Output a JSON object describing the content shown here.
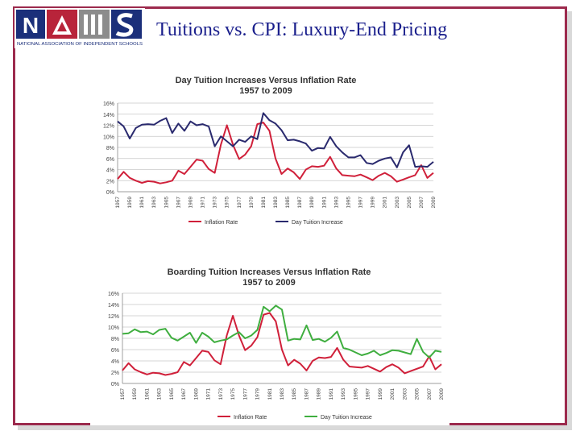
{
  "slide_title": "Tuitions vs. CPI: Luxury-End Pricing",
  "logo": {
    "letters": [
      "N",
      "A",
      "I",
      "S"
    ],
    "caption": "NATIONAL ASSOCIATION OF INDEPENDENT SCHOOLS",
    "colors": {
      "blue": "#1b2f7a",
      "red": "#b8243a",
      "gray": "#8c8c8c"
    }
  },
  "colors": {
    "frame": "#9c2a4d",
    "inflation": "#d0203a",
    "day": "#2a2a6e",
    "boarding": "#3fae3f"
  },
  "chart_data": [
    {
      "type": "line",
      "title": "Day Tuition Increases Versus Inflation Rate",
      "subtitle": "1957 to 2009",
      "ylim": [
        0,
        16
      ],
      "yticks": [
        "16%",
        "14%",
        "12%",
        "10%",
        "8%",
        "6%",
        "4%",
        "2%",
        "0%"
      ],
      "grid": true,
      "legend_position": "bottom",
      "x": [
        1957,
        1958,
        1959,
        1960,
        1961,
        1962,
        1963,
        1964,
        1965,
        1966,
        1967,
        1968,
        1969,
        1970,
        1971,
        1972,
        1973,
        1974,
        1975,
        1976,
        1977,
        1978,
        1979,
        1980,
        1981,
        1982,
        1983,
        1984,
        1985,
        1986,
        1987,
        1988,
        1989,
        1990,
        1991,
        1992,
        1993,
        1994,
        1995,
        1996,
        1997,
        1998,
        1999,
        2000,
        2001,
        2002,
        2003,
        2004,
        2005,
        2006,
        2007,
        2008,
        2009
      ],
      "xtick_labels": [
        "1957",
        "1959",
        "1961",
        "1963",
        "1965",
        "1967",
        "1969",
        "1971",
        "1973",
        "1975",
        "1977",
        "1979",
        "1981",
        "1983",
        "1985",
        "1987",
        "1989",
        "1991",
        "1993",
        "1995",
        "1997",
        "1999",
        "2001",
        "2003",
        "2005",
        "2007",
        "2009"
      ],
      "series": [
        {
          "name": "Inflation Rate",
          "color": "#d0203a",
          "values": [
            2.3,
            3.6,
            2.5,
            2.0,
            1.6,
            1.9,
            1.8,
            1.5,
            1.7,
            2.0,
            3.8,
            3.2,
            4.5,
            5.8,
            5.6,
            4.1,
            3.4,
            8.5,
            12.0,
            8.5,
            5.9,
            6.7,
            8.2,
            12.2,
            12.5,
            11.0,
            6.0,
            3.2,
            4.2,
            3.5,
            2.3,
            4.0,
            4.6,
            4.5,
            4.7,
            6.3,
            4.2,
            3.0,
            2.9,
            2.8,
            3.1,
            2.6,
            2.1,
            2.9,
            3.4,
            2.8,
            1.8,
            2.2,
            2.6,
            3.0,
            4.8,
            2.5,
            3.4
          ]
        },
        {
          "name": "Day Tuition Increase",
          "color": "#2a2a6e",
          "values": [
            12.7,
            11.8,
            9.6,
            11.5,
            12.1,
            12.2,
            12.1,
            12.8,
            13.3,
            10.6,
            12.3,
            11.0,
            12.7,
            12.0,
            12.2,
            11.8,
            8.2,
            10.0,
            9.1,
            8.2,
            9.4,
            9.0,
            10.0,
            9.5,
            14.2,
            12.9,
            12.3,
            11.1,
            9.3,
            9.4,
            9.1,
            8.7,
            7.4,
            7.9,
            7.8,
            9.9,
            8.2,
            7.1,
            6.2,
            6.2,
            6.6,
            5.2,
            5.0,
            5.6,
            6.0,
            6.2,
            4.4,
            7.1,
            8.4,
            4.5,
            4.6,
            4.5,
            5.4
          ]
        }
      ]
    },
    {
      "type": "line",
      "title": "Boarding Tuition Increases Versus Inflation Rate",
      "subtitle": "1957 to 2009",
      "ylim": [
        0,
        16
      ],
      "yticks": [
        "16%",
        "14%",
        "12%",
        "10%",
        "8%",
        "6%",
        "4%",
        "2%",
        "0%"
      ],
      "grid": true,
      "legend_position": "bottom",
      "x": [
        1957,
        1958,
        1959,
        1960,
        1961,
        1962,
        1963,
        1964,
        1965,
        1966,
        1967,
        1968,
        1969,
        1970,
        1971,
        1972,
        1973,
        1974,
        1975,
        1976,
        1977,
        1978,
        1979,
        1980,
        1981,
        1982,
        1983,
        1984,
        1985,
        1986,
        1987,
        1988,
        1989,
        1990,
        1991,
        1992,
        1993,
        1994,
        1995,
        1996,
        1997,
        1998,
        1999,
        2000,
        2001,
        2002,
        2003,
        2004,
        2005,
        2006,
        2007,
        2008,
        2009
      ],
      "xtick_labels": [
        "1957",
        "1959",
        "1961",
        "1963",
        "1965",
        "1967",
        "1969",
        "1971",
        "1973",
        "1975",
        "1977",
        "1979",
        "1981",
        "1983",
        "1985",
        "1987",
        "1989",
        "1991",
        "1993",
        "1995",
        "1997",
        "1999",
        "2001",
        "2003",
        "2005",
        "2007",
        "2009"
      ],
      "series": [
        {
          "name": "Inflation Rate",
          "color": "#d0203a",
          "values": [
            2.3,
            3.6,
            2.5,
            2.0,
            1.6,
            1.9,
            1.8,
            1.5,
            1.7,
            2.0,
            3.8,
            3.2,
            4.5,
            5.8,
            5.6,
            4.1,
            3.4,
            8.5,
            12.0,
            8.5,
            5.9,
            6.7,
            8.2,
            12.2,
            12.5,
            11.0,
            6.0,
            3.2,
            4.2,
            3.5,
            2.3,
            4.0,
            4.6,
            4.5,
            4.7,
            6.3,
            4.2,
            3.0,
            2.9,
            2.8,
            3.1,
            2.6,
            2.1,
            2.9,
            3.4,
            2.8,
            1.8,
            2.2,
            2.6,
            3.0,
            4.8,
            2.5,
            3.4
          ]
        },
        {
          "name": "Day Tuition Increase",
          "color": "#3fae3f",
          "values": [
            8.8,
            8.9,
            9.6,
            9.1,
            9.2,
            8.7,
            9.5,
            9.7,
            8.1,
            7.6,
            8.3,
            9.0,
            7.2,
            9.0,
            8.3,
            7.3,
            7.6,
            7.8,
            8.5,
            9.1,
            8.0,
            8.5,
            9.5,
            13.6,
            12.8,
            13.8,
            13.1,
            7.6,
            7.9,
            7.8,
            10.3,
            7.7,
            7.9,
            7.4,
            8.1,
            9.2,
            6.3,
            6.0,
            5.5,
            5.0,
            5.3,
            5.8,
            5.0,
            5.4,
            5.9,
            5.8,
            5.5,
            5.2,
            7.9,
            5.6,
            4.6,
            5.8,
            5.6
          ]
        }
      ]
    }
  ]
}
